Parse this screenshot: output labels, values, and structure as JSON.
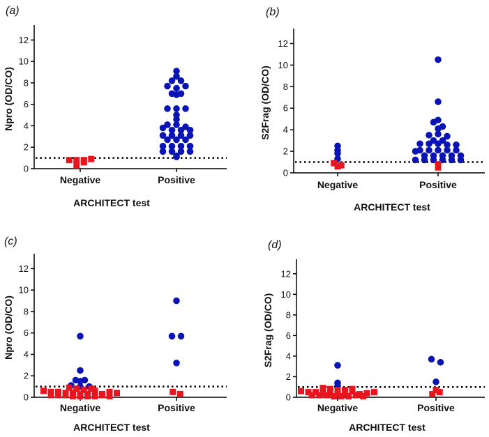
{
  "chart_data": [
    {
      "type": "scatter",
      "panel": "(a)",
      "ylabel": "Npro (OD/CO)",
      "xlabel": "ARCHITECT  test",
      "categories": [
        "Negative",
        "Positive"
      ],
      "ylim": [
        0,
        13
      ],
      "yticks": [
        0,
        2,
        4,
        6,
        8,
        10,
        12
      ],
      "cutoff": 1.0,
      "series": [
        {
          "marker": "circle",
          "color": "#0a14b4",
          "points": [
            {
              "category": "Positive",
              "y": 9.1
            },
            {
              "category": "Positive",
              "y": 8.6
            },
            {
              "category": "Positive",
              "y": 8.2
            },
            {
              "category": "Positive",
              "y": 8.2
            },
            {
              "category": "Positive",
              "y": 7.7
            },
            {
              "category": "Positive",
              "y": 7.5
            },
            {
              "category": "Positive",
              "y": 7.7
            },
            {
              "category": "Positive",
              "y": 7.0
            },
            {
              "category": "Positive",
              "y": 6.9
            },
            {
              "category": "Positive",
              "y": 7.0
            },
            {
              "category": "Positive",
              "y": 5.6
            },
            {
              "category": "Positive",
              "y": 5.6
            },
            {
              "category": "Positive",
              "y": 5.6
            },
            {
              "category": "Positive",
              "y": 5.0
            },
            {
              "category": "Positive",
              "y": 4.6
            },
            {
              "category": "Positive",
              "y": 4.1
            },
            {
              "category": "Positive",
              "y": 4.1
            },
            {
              "category": "Positive",
              "y": 3.9
            },
            {
              "category": "Positive",
              "y": 3.8
            },
            {
              "category": "Positive",
              "y": 3.6
            },
            {
              "category": "Positive",
              "y": 3.6
            },
            {
              "category": "Positive",
              "y": 3.6
            },
            {
              "category": "Positive",
              "y": 3.1
            },
            {
              "category": "Positive",
              "y": 3.1
            },
            {
              "category": "Positive",
              "y": 3.1
            },
            {
              "category": "Positive",
              "y": 3.1
            },
            {
              "category": "Positive",
              "y": 2.7
            },
            {
              "category": "Positive",
              "y": 2.7
            },
            {
              "category": "Positive",
              "y": 2.7
            },
            {
              "category": "Positive",
              "y": 2.1
            },
            {
              "category": "Positive",
              "y": 2.1
            },
            {
              "category": "Positive",
              "y": 2.1
            },
            {
              "category": "Positive",
              "y": 2.1
            },
            {
              "category": "Positive",
              "y": 1.6
            },
            {
              "category": "Positive",
              "y": 1.6
            },
            {
              "category": "Positive",
              "y": 1.6
            },
            {
              "category": "Positive",
              "y": 1.6
            },
            {
              "category": "Positive",
              "y": 1.2
            },
            {
              "category": "Positive",
              "y": 1.1
            }
          ]
        },
        {
          "marker": "square",
          "color": "#e8141e",
          "points": [
            {
              "category": "Negative",
              "y": 0.8
            },
            {
              "category": "Negative",
              "y": 0.8
            },
            {
              "category": "Negative",
              "y": 0.3
            },
            {
              "category": "Negative",
              "y": 0.6
            },
            {
              "category": "Negative",
              "y": 0.8
            },
            {
              "category": "Negative",
              "y": 0.9
            }
          ]
        }
      ]
    },
    {
      "type": "scatter",
      "panel": "(b)",
      "ylabel": "S2Frag (OD/CO)",
      "xlabel": "ARCHITECT  test",
      "categories": [
        "Negative",
        "Positive"
      ],
      "ylim": [
        0,
        13
      ],
      "yticks": [
        0,
        2,
        4,
        6,
        8,
        10,
        12
      ],
      "cutoff": 1.0,
      "series": [
        {
          "marker": "circle",
          "color": "#0a14b4",
          "points": [
            {
              "category": "Negative",
              "y": 2.1
            },
            {
              "category": "Negative",
              "y": 1.8
            },
            {
              "category": "Negative",
              "y": 2.5
            },
            {
              "category": "Negative",
              "y": 1.3
            },
            {
              "category": "Positive",
              "y": 10.5
            },
            {
              "category": "Positive",
              "y": 6.6
            },
            {
              "category": "Positive",
              "y": 4.9
            },
            {
              "category": "Positive",
              "y": 4.7
            },
            {
              "category": "Positive",
              "y": 4.3
            },
            {
              "category": "Positive",
              "y": 4.1
            },
            {
              "category": "Positive",
              "y": 3.5
            },
            {
              "category": "Positive",
              "y": 3.6
            },
            {
              "category": "Positive",
              "y": 3.4
            },
            {
              "category": "Positive",
              "y": 3.0
            },
            {
              "category": "Positive",
              "y": 3.0
            },
            {
              "category": "Positive",
              "y": 2.7
            },
            {
              "category": "Positive",
              "y": 2.7
            },
            {
              "category": "Positive",
              "y": 2.7
            },
            {
              "category": "Positive",
              "y": 2.6
            },
            {
              "category": "Positive",
              "y": 2.6
            },
            {
              "category": "Positive",
              "y": 2.1
            },
            {
              "category": "Positive",
              "y": 2.1
            },
            {
              "category": "Positive",
              "y": 2.1
            },
            {
              "category": "Positive",
              "y": 2.1
            },
            {
              "category": "Positive",
              "y": 2.1
            },
            {
              "category": "Positive",
              "y": 2.0
            },
            {
              "category": "Positive",
              "y": 1.6
            },
            {
              "category": "Positive",
              "y": 1.6
            },
            {
              "category": "Positive",
              "y": 1.6
            },
            {
              "category": "Positive",
              "y": 1.6
            },
            {
              "category": "Positive",
              "y": 1.6
            },
            {
              "category": "Positive",
              "y": 1.2
            },
            {
              "category": "Positive",
              "y": 1.2
            },
            {
              "category": "Positive",
              "y": 1.2
            },
            {
              "category": "Positive",
              "y": 1.2
            },
            {
              "category": "Positive",
              "y": 1.2
            },
            {
              "category": "Positive",
              "y": 1.2
            }
          ]
        },
        {
          "marker": "square",
          "color": "#e8141e",
          "points": [
            {
              "category": "Negative",
              "y": 0.9
            },
            {
              "category": "Negative",
              "y": 0.6
            },
            {
              "category": "Negative",
              "y": 0.7
            },
            {
              "category": "Positive",
              "y": 0.5
            },
            {
              "category": "Positive",
              "y": 0.8
            }
          ]
        }
      ]
    },
    {
      "type": "scatter",
      "panel": "(c)",
      "ylabel": "Npro (OD/CO)",
      "xlabel": "ARCHITECT test",
      "categories": [
        "Negative",
        "Positive"
      ],
      "ylim": [
        0,
        13
      ],
      "yticks": [
        0,
        2,
        4,
        6,
        8,
        10,
        12
      ],
      "cutoff": 1.0,
      "series": [
        {
          "marker": "circle",
          "color": "#0a14b4",
          "points": [
            {
              "category": "Negative",
              "y": 5.7
            },
            {
              "category": "Negative",
              "y": 2.5
            },
            {
              "category": "Negative",
              "y": 1.6
            },
            {
              "category": "Negative",
              "y": 1.5
            },
            {
              "category": "Negative",
              "y": 1.6
            },
            {
              "category": "Negative",
              "y": 1.1
            },
            {
              "category": "Negative",
              "y": 1.0
            },
            {
              "category": "Negative",
              "y": 1.0
            },
            {
              "category": "Positive",
              "y": 9.0
            },
            {
              "category": "Positive",
              "y": 5.7
            },
            {
              "category": "Positive",
              "y": 5.7
            },
            {
              "category": "Positive",
              "y": 3.2
            }
          ]
        },
        {
          "marker": "square",
          "color": "#e8141e",
          "points": [
            {
              "category": "Negative",
              "y": 0.9
            },
            {
              "category": "Negative",
              "y": 0.8
            },
            {
              "category": "Negative",
              "y": 0.7
            },
            {
              "category": "Negative",
              "y": 0.6
            },
            {
              "category": "Negative",
              "y": 0.5
            },
            {
              "category": "Negative",
              "y": 0.5
            },
            {
              "category": "Negative",
              "y": 0.4
            },
            {
              "category": "Negative",
              "y": 0.4
            },
            {
              "category": "Negative",
              "y": 0.3
            },
            {
              "category": "Negative",
              "y": 0.3
            },
            {
              "category": "Negative",
              "y": 0.2
            },
            {
              "category": "Negative",
              "y": 0.2
            },
            {
              "category": "Negative",
              "y": 0.2
            },
            {
              "category": "Negative",
              "y": 0.1
            },
            {
              "category": "Negative",
              "y": 0.1
            },
            {
              "category": "Negative",
              "y": 0.1
            },
            {
              "category": "Negative",
              "y": 0.1
            },
            {
              "category": "Negative",
              "y": 0.6
            },
            {
              "category": "Negative",
              "y": 0.3
            },
            {
              "category": "Negative",
              "y": 0.5
            },
            {
              "category": "Negative",
              "y": 0.8
            },
            {
              "category": "Negative",
              "y": 0.2
            },
            {
              "category": "Negative",
              "y": 0.4
            },
            {
              "category": "Negative",
              "y": 0.1
            },
            {
              "category": "Positive",
              "y": 0.5
            },
            {
              "category": "Positive",
              "y": 0.3
            }
          ]
        }
      ]
    },
    {
      "type": "scatter",
      "panel": "(d)",
      "ylabel": "S2Frag (OD/CO)",
      "xlabel": "ARCHITECT test",
      "categories": [
        "Negative",
        "Positive"
      ],
      "ylim": [
        0,
        13
      ],
      "yticks": [
        0,
        2,
        4,
        6,
        8,
        10,
        12
      ],
      "cutoff": 1.0,
      "series": [
        {
          "marker": "circle",
          "color": "#0a14b4",
          "points": [
            {
              "category": "Negative",
              "y": 3.1
            },
            {
              "category": "Negative",
              "y": 1.4
            },
            {
              "category": "Negative",
              "y": 1.1
            },
            {
              "category": "Positive",
              "y": 3.7
            },
            {
              "category": "Positive",
              "y": 3.4
            },
            {
              "category": "Positive",
              "y": 1.5
            }
          ]
        },
        {
          "marker": "square",
          "color": "#e8141e",
          "points": [
            {
              "category": "Negative",
              "y": 0.9
            },
            {
              "category": "Negative",
              "y": 0.8
            },
            {
              "category": "Negative",
              "y": 0.7
            },
            {
              "category": "Negative",
              "y": 0.6
            },
            {
              "category": "Negative",
              "y": 0.5
            },
            {
              "category": "Negative",
              "y": 0.5
            },
            {
              "category": "Negative",
              "y": 0.4
            },
            {
              "category": "Negative",
              "y": 0.4
            },
            {
              "category": "Negative",
              "y": 0.3
            },
            {
              "category": "Negative",
              "y": 0.3
            },
            {
              "category": "Negative",
              "y": 0.2
            },
            {
              "category": "Negative",
              "y": 0.2
            },
            {
              "category": "Negative",
              "y": 0.2
            },
            {
              "category": "Negative",
              "y": 0.1
            },
            {
              "category": "Negative",
              "y": 0.1
            },
            {
              "category": "Negative",
              "y": 0.1
            },
            {
              "category": "Negative",
              "y": 0.6
            },
            {
              "category": "Negative",
              "y": 0.3
            },
            {
              "category": "Negative",
              "y": 0.7
            },
            {
              "category": "Negative",
              "y": 0.4
            },
            {
              "category": "Negative",
              "y": 0.2
            },
            {
              "category": "Negative",
              "y": 0.5
            },
            {
              "category": "Negative",
              "y": 0.8
            },
            {
              "category": "Negative",
              "y": 0.1
            },
            {
              "category": "Positive",
              "y": 0.7
            },
            {
              "category": "Positive",
              "y": 0.3
            },
            {
              "category": "Positive",
              "y": 0.5
            }
          ]
        }
      ]
    }
  ]
}
